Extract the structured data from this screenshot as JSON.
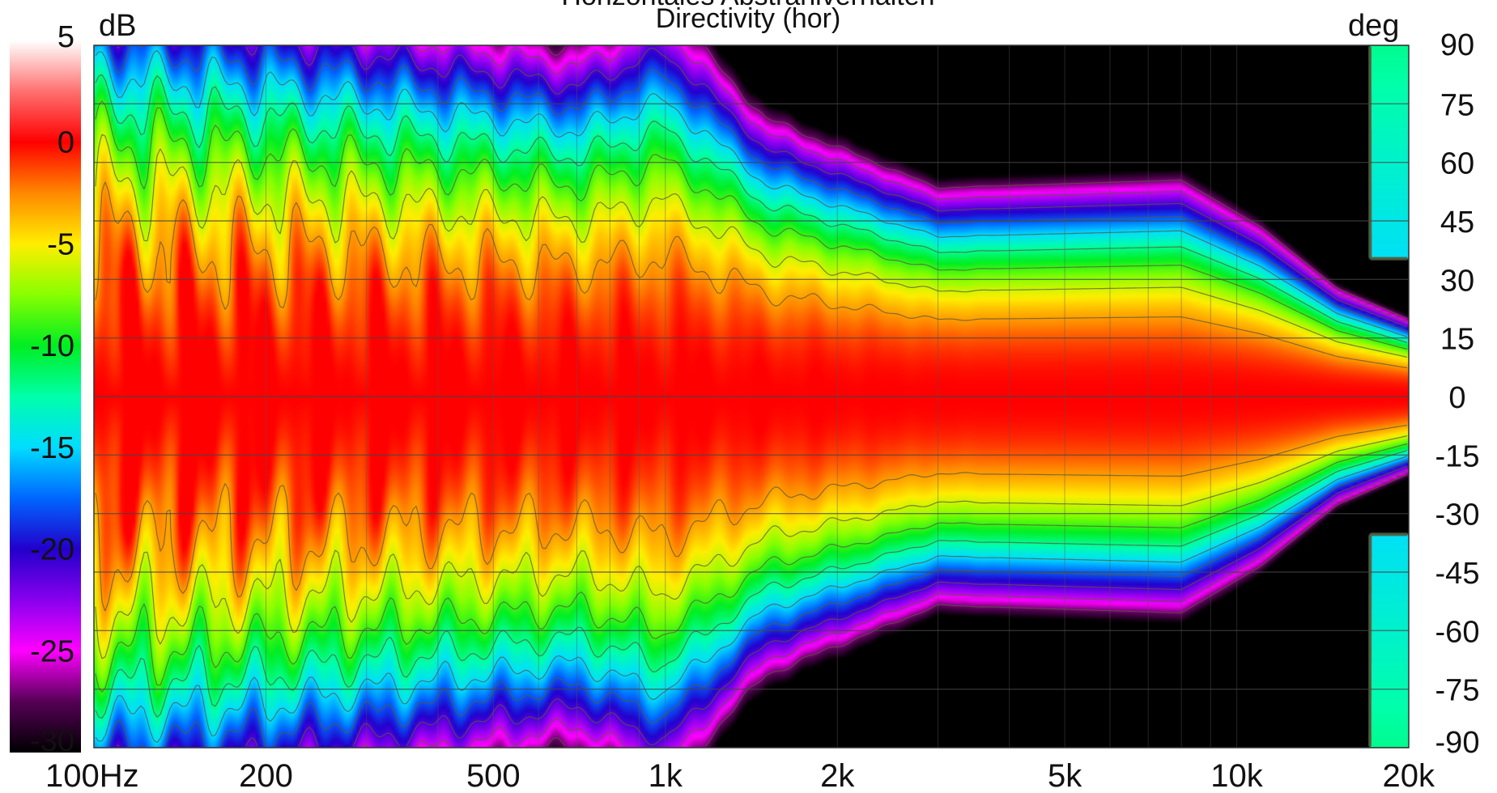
{
  "chart_data": {
    "type": "heatmap",
    "title": "Horizontales Abstrahlverhalten",
    "subtitle": "Directivity (hor)",
    "colorbar": {
      "unit": "dB",
      "ticks": [
        5,
        0,
        -5,
        -10,
        -15,
        -20,
        -25,
        -30
      ],
      "range": [
        -30,
        5
      ],
      "colors": [
        {
          "db": 5,
          "color": "#ffffff"
        },
        {
          "db": 2.5,
          "color": "#ff7070"
        },
        {
          "db": 0,
          "color": "#ff0000"
        },
        {
          "db": -2.5,
          "color": "#ff8800"
        },
        {
          "db": -5,
          "color": "#ffee00"
        },
        {
          "db": -7.5,
          "color": "#88ff00"
        },
        {
          "db": -10,
          "color": "#00ee22"
        },
        {
          "db": -12.5,
          "color": "#00ffaa"
        },
        {
          "db": -15,
          "color": "#00ddff"
        },
        {
          "db": -17.5,
          "color": "#0066ff"
        },
        {
          "db": -20,
          "color": "#2200cc"
        },
        {
          "db": -22.5,
          "color": "#8800ee"
        },
        {
          "db": -25,
          "color": "#ff00ff"
        },
        {
          "db": -27.5,
          "color": "#550055"
        },
        {
          "db": -30,
          "color": "#000000"
        }
      ]
    },
    "x_axis": {
      "scale": "log",
      "range_hz": [
        100,
        20000
      ],
      "ticks": [
        {
          "hz": 100,
          "label": "100Hz"
        },
        {
          "hz": 200,
          "label": "200"
        },
        {
          "hz": 500,
          "label": "500"
        },
        {
          "hz": 1000,
          "label": "1k"
        },
        {
          "hz": 2000,
          "label": "2k"
        },
        {
          "hz": 5000,
          "label": "5k"
        },
        {
          "hz": 10000,
          "label": "10k"
        },
        {
          "hz": 20000,
          "label": "20k"
        }
      ]
    },
    "y_axis": {
      "unit": "deg",
      "range": [
        -90,
        90
      ],
      "ticks": [
        90,
        75,
        60,
        45,
        30,
        15,
        0,
        -15,
        -30,
        -45,
        -60,
        -75,
        -90
      ]
    },
    "contour_step_db": 3,
    "beamwidth_profile": [
      {
        "hz": 100,
        "beamwidth_deg": 55
      },
      {
        "hz": 200,
        "beamwidth_deg": 52
      },
      {
        "hz": 400,
        "beamwidth_deg": 48
      },
      {
        "hz": 700,
        "beamwidth_deg": 45
      },
      {
        "hz": 1000,
        "beamwidth_deg": 50
      },
      {
        "hz": 1500,
        "beamwidth_deg": 36
      },
      {
        "hz": 3000,
        "beamwidth_deg": 27
      },
      {
        "hz": 8000,
        "beamwidth_deg": 28
      },
      {
        "hz": 11000,
        "beamwidth_deg": 22
      },
      {
        "hz": 15000,
        "beamwidth_deg": 14
      },
      {
        "hz": 20000,
        "beamwidth_deg": 10
      }
    ],
    "off_axis_null": {
      "hz": 17000,
      "deg": 70,
      "level_db": -30
    },
    "grid": true
  }
}
